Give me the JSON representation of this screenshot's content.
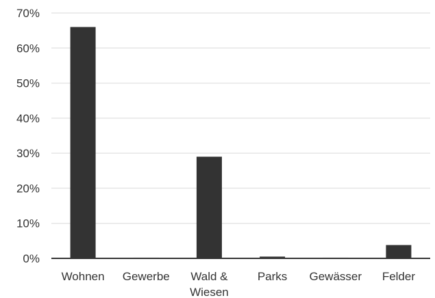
{
  "chart_data": {
    "type": "bar",
    "categories": [
      "Wohnen",
      "Gewerbe",
      "Wald & Wiesen",
      "Parks",
      "Gewässer",
      "Felder"
    ],
    "category_lines": [
      [
        "Wohnen"
      ],
      [
        "Gewerbe"
      ],
      [
        "Wald &",
        "Wiesen"
      ],
      [
        "Parks"
      ],
      [
        "Gewässer"
      ],
      [
        "Felder"
      ]
    ],
    "values": [
      66,
      0.2,
      29,
      0.5,
      0.2,
      3.8
    ],
    "ylim": [
      0,
      70
    ],
    "yticks": [
      0,
      10,
      20,
      30,
      40,
      50,
      60,
      70
    ],
    "ytick_labels": [
      "0%",
      "10%",
      "20%",
      "30%",
      "40%",
      "50%",
      "60%",
      "70%"
    ],
    "grid": true,
    "bar_color": "#333333",
    "grid_color": "#e6e6e6",
    "axis_color": "#333333"
  }
}
